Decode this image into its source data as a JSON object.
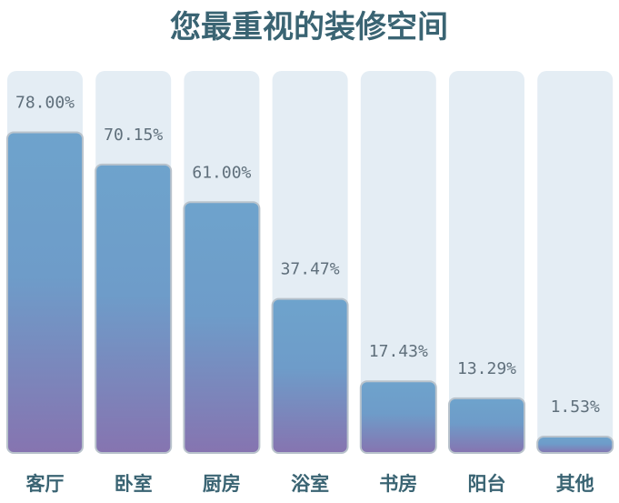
{
  "chart_data": {
    "type": "bar",
    "title": "您最重视的装修空间",
    "categories": [
      "客厅",
      "卧室",
      "厨房",
      "浴室",
      "书房",
      "阳台",
      "其他"
    ],
    "values": [
      78.0,
      70.15,
      61.0,
      37.47,
      17.43,
      13.29,
      1.53
    ],
    "value_labels": [
      "78.00%",
      "70.15%",
      "61.00%",
      "37.47%",
      "17.43%",
      "13.29%",
      "1.53%"
    ],
    "ylim": [
      0,
      100
    ],
    "grid": false,
    "legend": "none",
    "colors": {
      "track": "#e4edf4",
      "bar_top": "#6ea3cc",
      "bar_bottom": "#8674b0",
      "bar_stroke": "#b9c3cc",
      "title": "#3a6473",
      "value_text": "#5f6f7b"
    }
  }
}
